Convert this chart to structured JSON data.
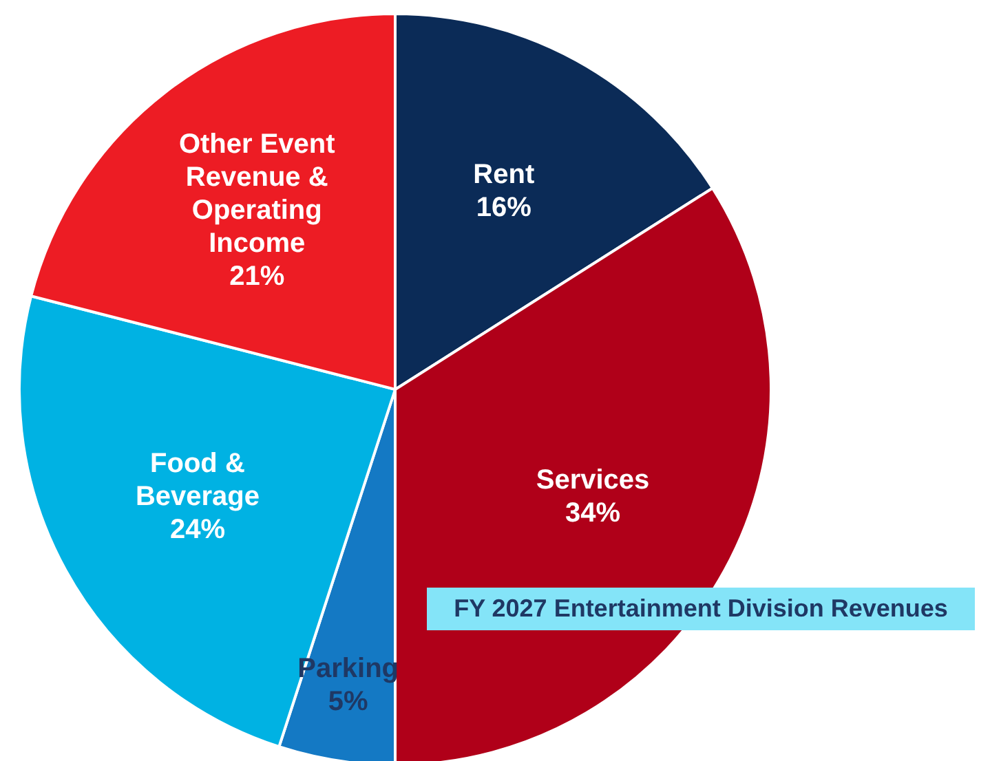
{
  "chart_data": {
    "type": "pie",
    "title": "FY 2027 Entertainment Division Revenues",
    "categories": [
      "Rent",
      "Services",
      "Parking",
      "Food & Beverage",
      "Other Event Revenue & Operating Income"
    ],
    "values": [
      16,
      34,
      5,
      24,
      21
    ],
    "colors": [
      "#0b2b57",
      "#b00019",
      "#1479c4",
      "#00b2e3",
      "#ed1c24"
    ],
    "value_labels": [
      "16%",
      "34%",
      "5%",
      "24%",
      "21%"
    ]
  }
}
